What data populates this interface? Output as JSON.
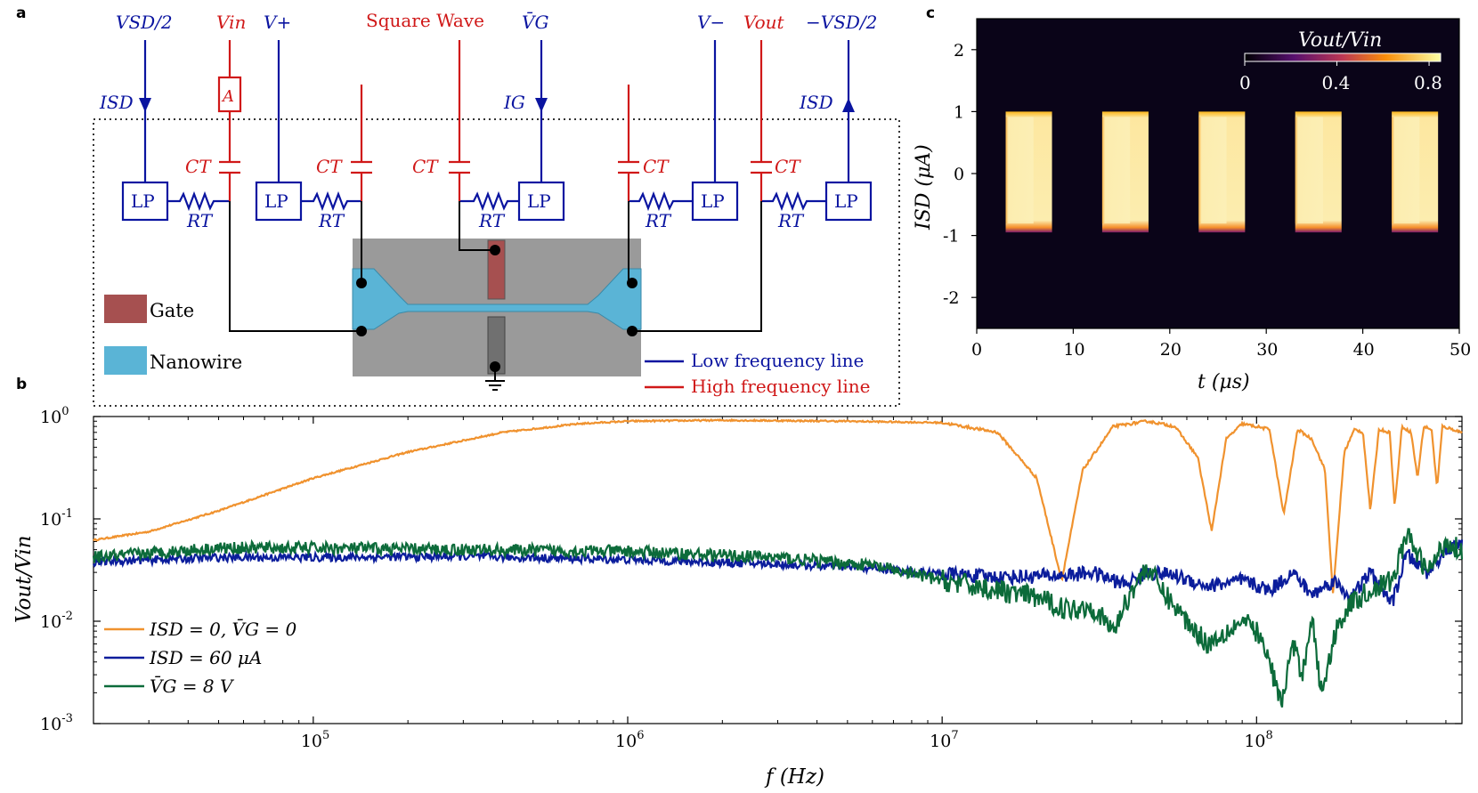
{
  "panel_labels": {
    "a": "a",
    "b": "b",
    "c": "c"
  },
  "colors": {
    "low_freq": "#0a14a0",
    "high_freq": "#d01818",
    "gate": "#a65050",
    "nanowire": "#5ab4d6",
    "substrate": "#9a9a9a",
    "orange": "#f0922e",
    "blue": "#0b1d9c",
    "green": "#0c6b3a"
  },
  "circuit": {
    "top_labels": {
      "vsd_half": "VSD/2",
      "vin": "Vin",
      "vplus": "V+",
      "square_wave": "Square Wave",
      "vg_bar": "V̄G",
      "vminus": "V−",
      "vout": "Vout",
      "neg_vsd_half": "−VSD/2"
    },
    "current_labels": {
      "isd_left": "ISD",
      "ig": "IG",
      "isd_right": "ISD"
    },
    "ammeter": "A",
    "lp_label": "LP",
    "ct_label": "CT",
    "rt_label": "RT",
    "legend": {
      "gate": "Gate",
      "nanowire": "Nanowire",
      "low_freq_line": "Low frequency line",
      "high_freq_line": "High frequency line"
    }
  },
  "chart_data": [
    {
      "id": "b",
      "type": "line",
      "xlabel": "f (Hz)",
      "ylabel": "Vout/Vin",
      "x_scale": "log",
      "y_scale": "log",
      "xlim": [
        20000,
        450000000
      ],
      "ylim": [
        0.001,
        1
      ],
      "x_ticks": [
        "10^5",
        "10^6",
        "10^7",
        "10^8"
      ],
      "y_ticks": [
        "10^0",
        "10^-1",
        "10^-2",
        "10^-3"
      ],
      "legend_position": "bottom-left",
      "series": [
        {
          "name": "ISD = 0, V̄G = 0",
          "color": "#f0922e",
          "points": [
            [
              20000,
              0.062
            ],
            [
              30000,
              0.075
            ],
            [
              50000,
              0.12
            ],
            [
              100000,
              0.25
            ],
            [
              200000,
              0.45
            ],
            [
              400000,
              0.7
            ],
            [
              700000,
              0.85
            ],
            [
              1000000,
              0.9
            ],
            [
              2000000,
              0.92
            ],
            [
              5000000,
              0.9
            ],
            [
              10000000,
              0.87
            ],
            [
              15000000,
              0.7
            ],
            [
              20000000,
              0.25
            ],
            [
              24000000,
              0.025
            ],
            [
              28000000,
              0.3
            ],
            [
              35000000,
              0.8
            ],
            [
              45000000,
              0.9
            ],
            [
              55000000,
              0.8
            ],
            [
              65000000,
              0.4
            ],
            [
              72000000,
              0.075
            ],
            [
              80000000,
              0.6
            ],
            [
              90000000,
              0.85
            ],
            [
              110000000,
              0.75
            ],
            [
              122000000,
              0.11
            ],
            [
              135000000,
              0.75
            ],
            [
              150000000,
              0.6
            ],
            [
              165000000,
              0.3
            ],
            [
              175000000,
              0.018
            ],
            [
              190000000,
              0.45
            ],
            [
              205000000,
              0.75
            ],
            [
              218000000,
              0.7
            ],
            [
              230000000,
              0.12
            ],
            [
              245000000,
              0.75
            ],
            [
              265000000,
              0.7
            ],
            [
              275000000,
              0.13
            ],
            [
              290000000,
              0.8
            ],
            [
              310000000,
              0.7
            ],
            [
              325000000,
              0.25
            ],
            [
              340000000,
              0.8
            ],
            [
              360000000,
              0.75
            ],
            [
              375000000,
              0.2
            ],
            [
              390000000,
              0.8
            ],
            [
              420000000,
              0.75
            ],
            [
              450000000,
              0.7
            ]
          ]
        },
        {
          "name": "ISD = 60 μA",
          "color": "#0b1d9c",
          "points": [
            [
              20000,
              0.038
            ],
            [
              50000,
              0.042
            ],
            [
              100000,
              0.042
            ],
            [
              300000,
              0.043
            ],
            [
              1000000,
              0.04
            ],
            [
              3000000,
              0.036
            ],
            [
              6000000,
              0.033
            ],
            [
              10000000,
              0.029
            ],
            [
              15000000,
              0.027
            ],
            [
              25000000,
              0.028
            ],
            [
              30000000,
              0.03
            ],
            [
              38000000,
              0.023
            ],
            [
              45000000,
              0.03
            ],
            [
              55000000,
              0.028
            ],
            [
              70000000,
              0.022
            ],
            [
              90000000,
              0.025
            ],
            [
              110000000,
              0.02
            ],
            [
              130000000,
              0.03
            ],
            [
              150000000,
              0.018
            ],
            [
              175000000,
              0.025
            ],
            [
              200000000,
              0.017
            ],
            [
              230000000,
              0.03
            ],
            [
              270000000,
              0.015
            ],
            [
              300000000,
              0.045
            ],
            [
              350000000,
              0.03
            ],
            [
              400000000,
              0.05
            ],
            [
              450000000,
              0.055
            ]
          ]
        },
        {
          "name": "V̄G = 8 V",
          "color": "#0c6b3a",
          "points": [
            [
              20000,
              0.042
            ],
            [
              50000,
              0.052
            ],
            [
              100000,
              0.052
            ],
            [
              300000,
              0.05
            ],
            [
              1000000,
              0.048
            ],
            [
              3000000,
              0.042
            ],
            [
              6000000,
              0.035
            ],
            [
              10000000,
              0.025
            ],
            [
              15000000,
              0.02
            ],
            [
              20000000,
              0.017
            ],
            [
              25000000,
              0.013
            ],
            [
              30000000,
              0.014
            ],
            [
              35000000,
              0.008
            ],
            [
              40000000,
              0.02
            ],
            [
              45000000,
              0.034
            ],
            [
              50000000,
              0.02
            ],
            [
              60000000,
              0.01
            ],
            [
              70000000,
              0.006
            ],
            [
              80000000,
              0.008
            ],
            [
              90000000,
              0.01
            ],
            [
              100000000,
              0.008
            ],
            [
              110000000,
              0.004
            ],
            [
              120000000,
              0.0015
            ],
            [
              130000000,
              0.006
            ],
            [
              140000000,
              0.003
            ],
            [
              150000000,
              0.012
            ],
            [
              160000000,
              0.002
            ],
            [
              170000000,
              0.004
            ],
            [
              180000000,
              0.009
            ],
            [
              200000000,
              0.015
            ],
            [
              230000000,
              0.02
            ],
            [
              270000000,
              0.025
            ],
            [
              300000000,
              0.07
            ],
            [
              350000000,
              0.03
            ],
            [
              400000000,
              0.06
            ],
            [
              450000000,
              0.05
            ]
          ]
        }
      ]
    },
    {
      "id": "c",
      "type": "heatmap",
      "title": "",
      "xlabel": "t (μs)",
      "ylabel": "ISD (μA)",
      "xlim": [
        0,
        50
      ],
      "ylim": [
        -2.5,
        2.5
      ],
      "x_ticks": [
        "0",
        "10",
        "20",
        "30",
        "40",
        "50"
      ],
      "y_ticks": [
        "2",
        "1",
        "0",
        "-1",
        "-2"
      ],
      "colorbar": {
        "label": "Vout/Vin",
        "ticks": [
          "0",
          "0.4",
          "0.8"
        ],
        "range": [
          0,
          0.85
        ],
        "position": "top-right"
      },
      "pulses": [
        {
          "t_start": 3,
          "t_end": 7.8,
          "i_min": -0.95,
          "i_max": 1.0,
          "value": 0.82
        },
        {
          "t_start": 13,
          "t_end": 17.8,
          "i_min": -0.95,
          "i_max": 1.0,
          "value": 0.82
        },
        {
          "t_start": 23,
          "t_end": 27.8,
          "i_min": -0.95,
          "i_max": 1.0,
          "value": 0.82
        },
        {
          "t_start": 33,
          "t_end": 37.8,
          "i_min": -0.95,
          "i_max": 1.0,
          "value": 0.82
        },
        {
          "t_start": 43,
          "t_end": 47.8,
          "i_min": -0.95,
          "i_max": 1.0,
          "value": 0.82
        }
      ]
    }
  ]
}
